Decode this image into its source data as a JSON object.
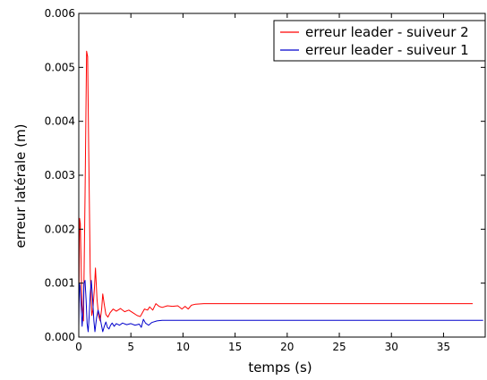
{
  "chart_data": {
    "type": "line",
    "title": "",
    "xlabel": "temps (s)",
    "ylabel": "erreur latérale (m)",
    "xlim": [
      0,
      39
    ],
    "ylim": [
      0,
      0.006
    ],
    "xticks": [
      0,
      5,
      10,
      15,
      20,
      25,
      30,
      35
    ],
    "xtick_labels": [
      "0",
      "5",
      "10",
      "15",
      "20",
      "25",
      "30",
      "35"
    ],
    "yticks": [
      0,
      0.001,
      0.002,
      0.003,
      0.004,
      0.005,
      0.006
    ],
    "ytick_labels": [
      "0.000",
      "0.001",
      "0.002",
      "0.003",
      "0.004",
      "0.005",
      "0.006"
    ],
    "grid": false,
    "legend_position": "top-right",
    "series": [
      {
        "name": "erreur leader - suiveur 2",
        "color": "#ff0000",
        "points": [
          [
            0.0,
            0.0005
          ],
          [
            0.08,
            0.0022
          ],
          [
            0.15,
            0.0021
          ],
          [
            0.3,
            0.0006
          ],
          [
            0.45,
            0.0003
          ],
          [
            0.6,
            0.0026
          ],
          [
            0.75,
            0.0053
          ],
          [
            0.85,
            0.0052
          ],
          [
            0.95,
            0.0035
          ],
          [
            1.1,
            0.0012
          ],
          [
            1.25,
            0.0004
          ],
          [
            1.35,
            0.0005
          ],
          [
            1.5,
            0.0009
          ],
          [
            1.6,
            0.00128
          ],
          [
            1.75,
            0.0007
          ],
          [
            1.9,
            0.0004
          ],
          [
            2.05,
            0.0003
          ],
          [
            2.2,
            0.00053
          ],
          [
            2.3,
            0.0008
          ],
          [
            2.45,
            0.0006
          ],
          [
            2.6,
            0.00042
          ],
          [
            2.8,
            0.00037
          ],
          [
            3.0,
            0.00045
          ],
          [
            3.3,
            0.00052
          ],
          [
            3.6,
            0.00048
          ],
          [
            4.0,
            0.00053
          ],
          [
            4.4,
            0.00047
          ],
          [
            4.8,
            0.0005
          ],
          [
            5.2,
            0.00045
          ],
          [
            5.6,
            0.0004
          ],
          [
            5.9,
            0.00038
          ],
          [
            6.1,
            0.00045
          ],
          [
            6.3,
            0.00052
          ],
          [
            6.6,
            0.0005
          ],
          [
            6.8,
            0.00056
          ],
          [
            7.1,
            0.0005
          ],
          [
            7.4,
            0.00062
          ],
          [
            7.7,
            0.00057
          ],
          [
            8.0,
            0.00055
          ],
          [
            8.5,
            0.00058
          ],
          [
            9.0,
            0.00057
          ],
          [
            9.5,
            0.00058
          ],
          [
            9.9,
            0.00052
          ],
          [
            10.2,
            0.00057
          ],
          [
            10.5,
            0.00052
          ],
          [
            10.8,
            0.00059
          ],
          [
            11.2,
            0.00061
          ],
          [
            12.0,
            0.00062
          ],
          [
            15.0,
            0.00062
          ],
          [
            20.0,
            0.00062
          ],
          [
            25.0,
            0.00062
          ],
          [
            30.0,
            0.00062
          ],
          [
            35.0,
            0.00062
          ],
          [
            37.8,
            0.00062
          ]
        ]
      },
      {
        "name": "erreur leader - suiveur 1",
        "color": "#0000cc",
        "points": [
          [
            0.0,
            0.0002
          ],
          [
            0.06,
            0.001
          ],
          [
            0.12,
            0.00095
          ],
          [
            0.22,
            0.0006
          ],
          [
            0.32,
            0.0002
          ],
          [
            0.42,
            0.0005
          ],
          [
            0.5,
            0.001
          ],
          [
            0.6,
            0.00105
          ],
          [
            0.7,
            0.0007
          ],
          [
            0.8,
            0.00025
          ],
          [
            0.9,
            0.0001
          ],
          [
            1.0,
            0.0004
          ],
          [
            1.1,
            0.0008
          ],
          [
            1.2,
            0.00105
          ],
          [
            1.3,
            0.0008
          ],
          [
            1.45,
            0.0003
          ],
          [
            1.55,
            0.0001
          ],
          [
            1.7,
            0.00035
          ],
          [
            1.85,
            0.0005
          ],
          [
            2.0,
            0.0004
          ],
          [
            2.15,
            0.00025
          ],
          [
            2.3,
            0.0001
          ],
          [
            2.45,
            0.0002
          ],
          [
            2.6,
            0.00028
          ],
          [
            2.75,
            0.00018
          ],
          [
            2.9,
            0.00015
          ],
          [
            3.05,
            0.00022
          ],
          [
            3.2,
            0.00026
          ],
          [
            3.4,
            0.0002
          ],
          [
            3.6,
            0.00025
          ],
          [
            3.9,
            0.00022
          ],
          [
            4.2,
            0.00026
          ],
          [
            4.6,
            0.00023
          ],
          [
            5.0,
            0.00025
          ],
          [
            5.4,
            0.00022
          ],
          [
            5.8,
            0.00024
          ],
          [
            6.0,
            0.00018
          ],
          [
            6.2,
            0.00033
          ],
          [
            6.4,
            0.00026
          ],
          [
            6.7,
            0.00022
          ],
          [
            7.0,
            0.00027
          ],
          [
            7.5,
            0.0003
          ],
          [
            8.0,
            0.00031
          ],
          [
            9.0,
            0.00031
          ],
          [
            10.0,
            0.00031
          ],
          [
            12.0,
            0.00031
          ],
          [
            15.0,
            0.00031
          ],
          [
            20.0,
            0.00031
          ],
          [
            25.0,
            0.00031
          ],
          [
            30.0,
            0.00031
          ],
          [
            35.0,
            0.00031
          ],
          [
            38.8,
            0.00031
          ]
        ]
      }
    ]
  }
}
